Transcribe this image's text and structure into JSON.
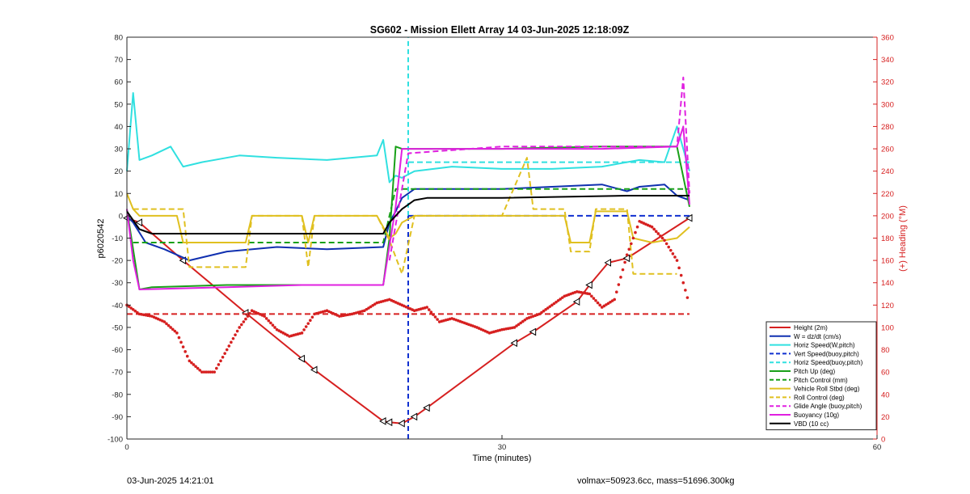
{
  "chart_data": {
    "type": "line",
    "title": "SG602 - Mission Ellett Array 14 03-Jun-2025 12:18:09Z",
    "xlabel": "Time (minutes)",
    "ylabel": "p6020542",
    "y2label": "(+) Heading (°M)",
    "xlim": [
      0,
      60
    ],
    "ylim": [
      -100,
      80
    ],
    "y2lim": [
      0,
      360
    ],
    "x_ticks": [
      0,
      30,
      60
    ],
    "y_ticks": [
      -100,
      -90,
      -80,
      -70,
      -60,
      -50,
      -40,
      -30,
      -20,
      -10,
      0,
      10,
      20,
      30,
      40,
      50,
      60,
      70,
      80
    ],
    "y2_ticks": [
      0,
      20,
      40,
      60,
      80,
      100,
      120,
      140,
      160,
      180,
      200,
      220,
      240,
      260,
      280,
      300,
      320,
      340,
      360
    ],
    "grid": false,
    "legend_position": "bottom-right",
    "series": [
      {
        "name": "Height (2m)",
        "color": "#d62020",
        "style": "solid",
        "marker": "triangle",
        "x": [
          0,
          1,
          4.5,
          9.5,
          14,
          15,
          20.5,
          21,
          22,
          23,
          24,
          31,
          32.5,
          36,
          37,
          38.5,
          40,
          45
        ],
        "y": [
          -1,
          -3,
          -20,
          -43.5,
          -64,
          -69,
          -92,
          -92.5,
          -93,
          -90,
          -86,
          -57,
          -52,
          -38.5,
          -31,
          -21,
          -19,
          -1
        ]
      },
      {
        "name": "W = dz/dt (cm/s)",
        "color": "#1030b0",
        "style": "solid",
        "x": [
          0,
          0.5,
          1.5,
          3,
          5,
          8,
          12,
          16,
          20.5,
          21,
          21.5,
          22,
          23,
          26,
          30,
          34,
          38,
          40,
          41,
          43,
          44,
          45
        ],
        "y": [
          0,
          -3,
          -12,
          -15,
          -20,
          -16,
          -14,
          -15,
          -14,
          -3,
          2,
          8,
          12,
          12,
          12,
          13,
          14,
          11,
          13,
          14,
          9,
          7
        ]
      },
      {
        "name": "Horiz Speed(W,pitch)",
        "color": "#30e0e0",
        "style": "solid",
        "x": [
          0,
          0.5,
          1,
          2,
          3.5,
          4.5,
          6,
          9,
          12,
          16,
          20,
          20.5,
          21,
          21.5,
          22,
          23,
          26,
          30,
          34,
          38,
          41,
          43,
          44,
          45
        ],
        "y": [
          20,
          55,
          25,
          27,
          31,
          22,
          24,
          27,
          26,
          25,
          27,
          34,
          15,
          18,
          17,
          20,
          22,
          21,
          21,
          22,
          25,
          24,
          40,
          20
        ]
      },
      {
        "name": "Vert Speed(buoy,pitch)",
        "color": "#1030d0",
        "style": "dashed",
        "x": [
          22.5,
          45
        ],
        "y": [
          0,
          0
        ]
      },
      {
        "name": "Horiz Speed(buoy,pitch)",
        "color": "#30e0e0",
        "style": "dashed",
        "x": [
          22.5,
          45
        ],
        "y": [
          24,
          24
        ]
      },
      {
        "name": "Pitch Up (deg)",
        "color": "#18a018",
        "style": "solid",
        "x": [
          0,
          0.5,
          1,
          2,
          8,
          14,
          20.5,
          21,
          21.5,
          22,
          30,
          38,
          44,
          45
        ],
        "y": [
          3,
          -15,
          -33,
          -32,
          -31,
          -31,
          -31,
          -10,
          31,
          30,
          30,
          31,
          31,
          4
        ]
      },
      {
        "name": "Pitch Control (mm)",
        "color": "#18a018",
        "style": "dashed",
        "x": [
          0.5,
          20.5,
          21.5,
          45
        ],
        "y": [
          -12,
          -12,
          12,
          12
        ]
      },
      {
        "name": "Vehicle Roll Stbd (deg)",
        "color": "#e0c020",
        "style": "solid",
        "x": [
          0,
          0.5,
          1,
          4,
          4.5,
          9.5,
          10,
          14,
          14.5,
          15,
          20,
          20.5,
          21,
          21.5,
          22,
          23,
          30,
          35,
          35.5,
          37,
          37.5,
          40,
          40.5,
          42,
          44,
          45
        ],
        "y": [
          10,
          3,
          0,
          0,
          -12,
          -12,
          0,
          0,
          -12,
          0,
          0,
          -5,
          -10,
          -8,
          -3,
          0,
          0,
          0,
          -12,
          -12,
          2,
          2,
          -10,
          -12,
          -10,
          -5
        ]
      },
      {
        "name": "Roll Control (deg)",
        "color": "#e0c020",
        "style": "dashed",
        "x": [
          0.5,
          4.5,
          5,
          9.5,
          10,
          14,
          14.5,
          15,
          20,
          21,
          22,
          23,
          30,
          32,
          32.5,
          35,
          35.5,
          37,
          37.5,
          40,
          40.5,
          44
        ],
        "y": [
          3,
          3,
          -23,
          -23,
          0,
          0,
          -23,
          0,
          0,
          -11,
          -26,
          0,
          0,
          26,
          3,
          3,
          -16,
          -16,
          3,
          3,
          -26,
          -26
        ]
      },
      {
        "name": "Glide Angle (buoy,pitch)",
        "color": "#e020e0",
        "style": "dashed",
        "x": [
          21,
          22.5,
          30,
          40,
          44,
          44.5,
          45
        ],
        "y": [
          -20,
          28,
          31,
          31,
          31,
          62,
          10
        ]
      },
      {
        "name": "Buoyancy (10g)",
        "color": "#e020e0",
        "style": "solid",
        "x": [
          0,
          0.5,
          1,
          8,
          14,
          20.5,
          21.5,
          22,
          30,
          38,
          44,
          44.5,
          45
        ],
        "y": [
          3,
          -20,
          -33,
          -32,
          -31,
          -31,
          4,
          30,
          30,
          30,
          31,
          40,
          5
        ]
      },
      {
        "name": "VBD (10 cc)",
        "color": "#000000",
        "style": "solid",
        "x": [
          0,
          1,
          2,
          20.5,
          21,
          22,
          23,
          24,
          30,
          40,
          45
        ],
        "y": [
          2,
          -6,
          -8,
          -8,
          -3,
          3,
          7,
          8,
          8,
          9,
          9
        ]
      },
      {
        "name": "",
        "color": "#d62020",
        "style": "dashed",
        "axis": "right",
        "x": [
          0,
          45
        ],
        "y": [
          112,
          112
        ]
      },
      {
        "name": "",
        "color": "#d62020",
        "style": "dots",
        "axis": "right",
        "x": [
          0,
          1,
          2,
          3,
          4,
          5,
          6,
          7,
          8,
          9,
          10,
          11,
          12,
          13,
          14,
          15,
          16,
          17,
          18,
          19,
          20,
          21,
          22,
          23,
          24,
          25,
          26,
          27,
          28,
          29,
          30,
          31,
          32,
          33,
          34,
          35,
          36,
          37,
          38,
          39,
          40,
          41,
          42,
          43,
          44,
          45
        ],
        "y": [
          120,
          112,
          110,
          105,
          95,
          70,
          60,
          60,
          80,
          100,
          115,
          110,
          98,
          92,
          95,
          112,
          115,
          110,
          112,
          115,
          122,
          125,
          120,
          115,
          118,
          105,
          108,
          104,
          100,
          95,
          98,
          100,
          108,
          112,
          120,
          128,
          132,
          130,
          118,
          125,
          165,
          195,
          190,
          178,
          160,
          120
        ]
      }
    ],
    "annotations": [
      {
        "type": "vline",
        "x": 22.5,
        "color": "#1030d0",
        "style": "dashed",
        "y_from": -100,
        "y_to": 0
      },
      {
        "type": "vline",
        "x": 22.5,
        "color": "#30e0e0",
        "style": "dashed",
        "y_from": 0,
        "y_to": 80
      }
    ]
  },
  "footer": {
    "left": "03-Jun-2025 14:21:01",
    "right": "volmax=50923.6cc, mass=51696.300kg"
  }
}
